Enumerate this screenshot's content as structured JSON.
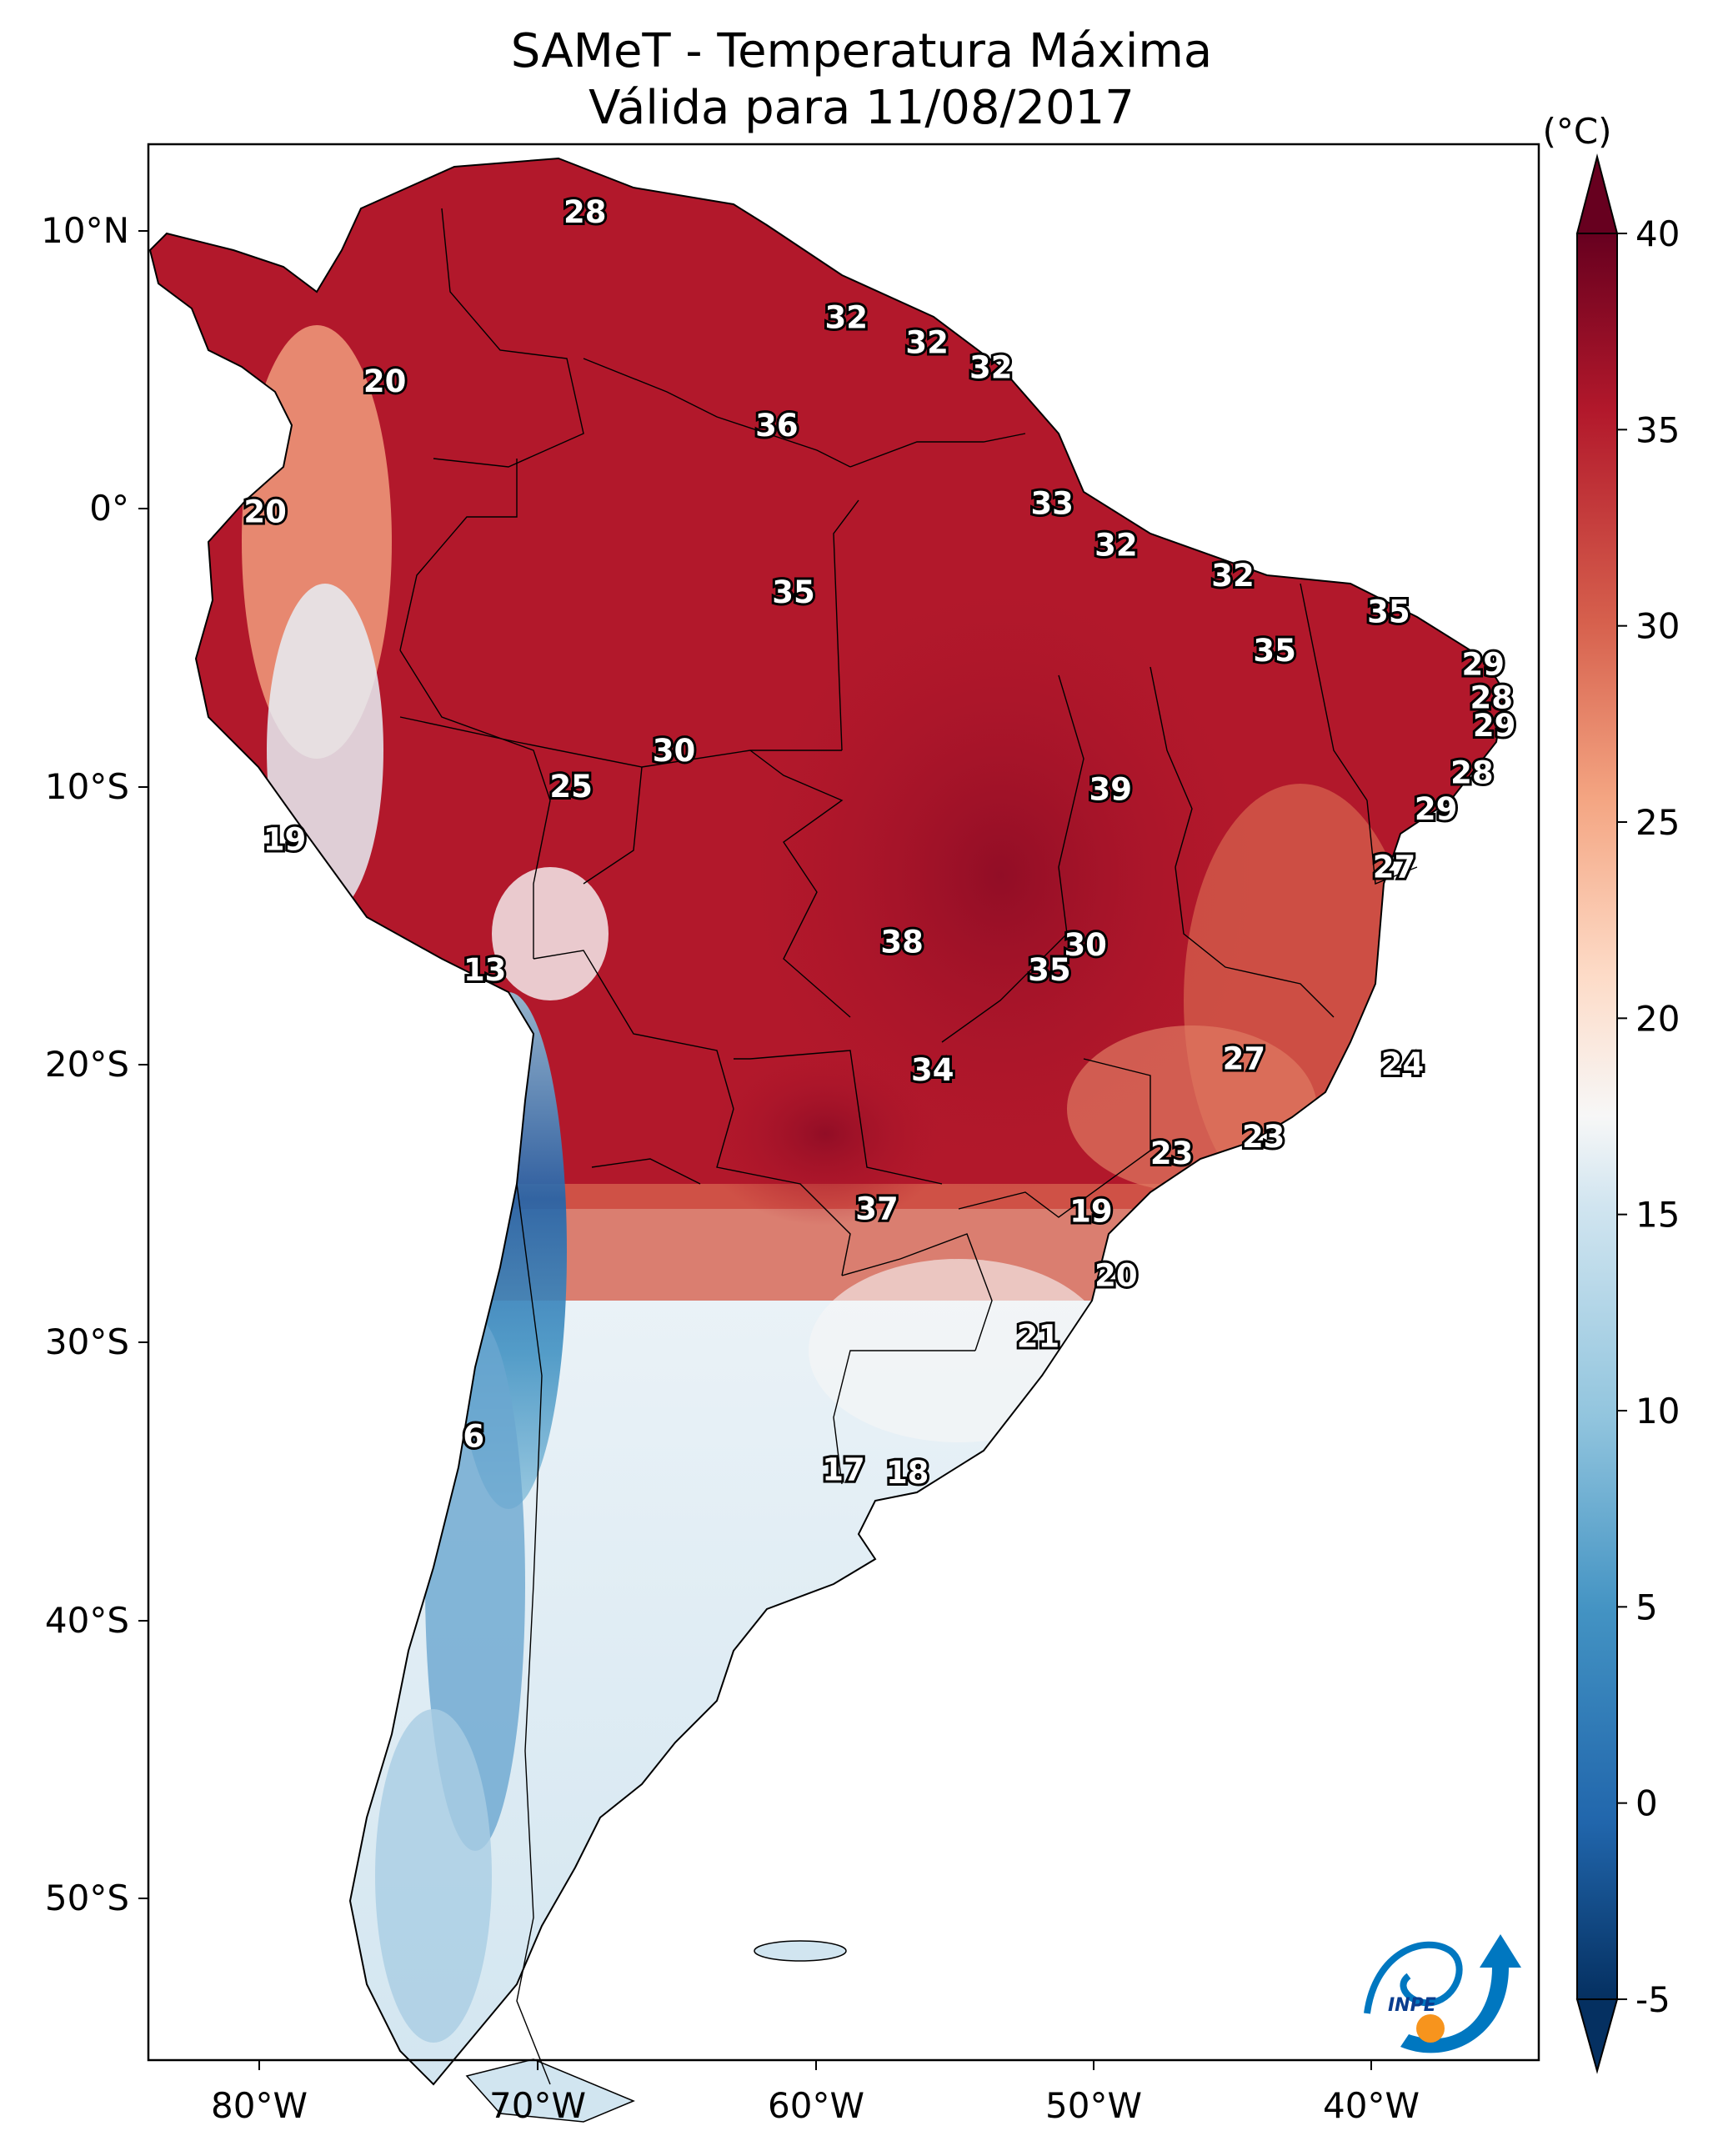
{
  "title": "SAMeT - Temperatura Máxima",
  "subtitle": "Válida para 11/08/2017",
  "colorbar": {
    "unit": "(°C)",
    "ticks": [
      "40",
      "35",
      "30",
      "25",
      "20",
      "15",
      "10",
      "5",
      "0",
      "-5"
    ]
  },
  "axes": {
    "lat_ticks": [
      "10°N",
      "0°",
      "10°S",
      "20°S",
      "30°S",
      "40°S",
      "50°S"
    ],
    "lon_ticks": [
      "80°W",
      "70°W",
      "60°W",
      "50°W",
      "40°W"
    ]
  },
  "logo_text": "INPE",
  "colors": {
    "hot": "#b2182b",
    "warm": "#d6604d",
    "mild": "#f4a582",
    "neutral": "#f7f7f7",
    "cool": "#d1e5f0",
    "cold": "#4393c3",
    "very_cold": "#053061",
    "very_hot": "#67001f"
  },
  "chart_data": {
    "type": "contour-map",
    "variable": "Maximum temperature",
    "units": "°C",
    "date": "11/08/2017",
    "colorbar_range": [
      -5,
      40
    ],
    "lon_range": [
      -83,
      -33
    ],
    "lat_range": [
      -56,
      13
    ],
    "labels": [
      {
        "lon": -67.3,
        "lat": 10.5,
        "value": "28"
      },
      {
        "lon": -57.9,
        "lat": 6.7,
        "value": "32"
      },
      {
        "lon": -55.0,
        "lat": 5.8,
        "value": "32"
      },
      {
        "lon": -52.7,
        "lat": 4.9,
        "value": "32"
      },
      {
        "lon": -74.5,
        "lat": 4.4,
        "value": "20"
      },
      {
        "lon": -60.4,
        "lat": 2.8,
        "value": "36"
      },
      {
        "lon": -78.8,
        "lat": -0.3,
        "value": "20"
      },
      {
        "lon": -50.5,
        "lat": 0.0,
        "value": "33"
      },
      {
        "lon": -48.2,
        "lat": -1.5,
        "value": "32"
      },
      {
        "lon": -59.8,
        "lat": -3.2,
        "value": "35"
      },
      {
        "lon": -44.0,
        "lat": -2.6,
        "value": "32"
      },
      {
        "lon": -38.4,
        "lat": -3.9,
        "value": "35"
      },
      {
        "lon": -42.5,
        "lat": -5.3,
        "value": "35"
      },
      {
        "lon": -35.0,
        "lat": -5.8,
        "value": "29"
      },
      {
        "lon": -34.7,
        "lat": -7.0,
        "value": "28"
      },
      {
        "lon": -34.6,
        "lat": -8.0,
        "value": "29"
      },
      {
        "lon": -64.1,
        "lat": -8.9,
        "value": "30"
      },
      {
        "lon": -35.4,
        "lat": -9.7,
        "value": "28"
      },
      {
        "lon": -67.8,
        "lat": -10.2,
        "value": "25"
      },
      {
        "lon": -48.4,
        "lat": -10.3,
        "value": "39"
      },
      {
        "lon": -36.7,
        "lat": -11.0,
        "value": "29"
      },
      {
        "lon": -78.1,
        "lat": -12.1,
        "value": "19"
      },
      {
        "lon": -38.2,
        "lat": -13.1,
        "value": "27"
      },
      {
        "lon": -55.9,
        "lat": -15.8,
        "value": "38"
      },
      {
        "lon": -49.3,
        "lat": -15.9,
        "value": "30"
      },
      {
        "lon": -70.9,
        "lat": -16.8,
        "value": "13"
      },
      {
        "lon": -50.6,
        "lat": -16.8,
        "value": "35"
      },
      {
        "lon": -43.6,
        "lat": -20.0,
        "value": "27"
      },
      {
        "lon": -37.9,
        "lat": -20.2,
        "value": "24"
      },
      {
        "lon": -54.8,
        "lat": -20.4,
        "value": "34"
      },
      {
        "lon": -42.9,
        "lat": -22.8,
        "value": "23"
      },
      {
        "lon": -46.2,
        "lat": -23.4,
        "value": "23"
      },
      {
        "lon": -56.8,
        "lat": -25.4,
        "value": "37"
      },
      {
        "lon": -49.1,
        "lat": -25.5,
        "value": "19"
      },
      {
        "lon": -48.2,
        "lat": -27.8,
        "value": "20"
      },
      {
        "lon": -51.0,
        "lat": -30.0,
        "value": "21"
      },
      {
        "lon": -71.3,
        "lat": -33.6,
        "value": "6"
      },
      {
        "lon": -58.0,
        "lat": -34.8,
        "value": "17"
      },
      {
        "lon": -55.7,
        "lat": -34.9,
        "value": "18"
      }
    ]
  }
}
